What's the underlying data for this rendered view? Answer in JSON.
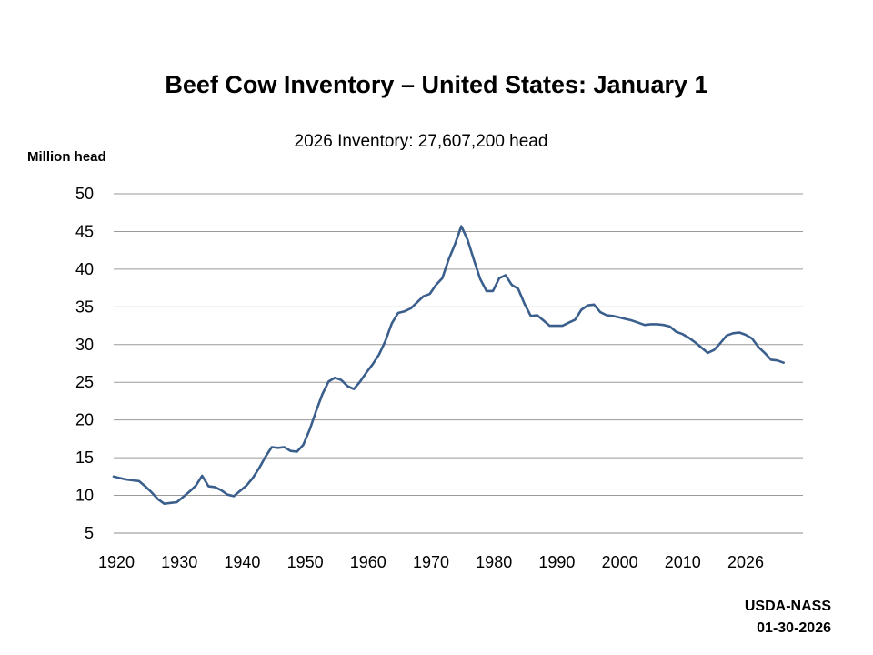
{
  "chart_data": {
    "type": "line",
    "title": "Beef Cow Inventory – United States: January 1",
    "subtitle": "2026 Inventory: 27,607,200 head",
    "xlabel": "",
    "ylabel": "Million head",
    "ylim": [
      5,
      50
    ],
    "yticks": [
      5,
      10,
      15,
      20,
      25,
      30,
      35,
      40,
      45,
      50
    ],
    "xticks": [
      "1920",
      "1930",
      "1940",
      "1950",
      "1960",
      "1970",
      "1980",
      "1990",
      "2000",
      "2010",
      "2026"
    ],
    "grid": true,
    "legend": "none",
    "line_color": "#3b5f8c",
    "series": [
      {
        "x": [
          1920,
          1921,
          1922,
          1923,
          1924,
          1925,
          1926,
          1927,
          1928,
          1929,
          1930,
          1931,
          1932,
          1933,
          1934,
          1935,
          1936,
          1937,
          1938,
          1939,
          1940,
          1941,
          1942,
          1943,
          1944,
          1945,
          1946,
          1947,
          1948,
          1949,
          1950,
          1951,
          1952,
          1953,
          1954,
          1955,
          1956,
          1957,
          1958,
          1959,
          1960,
          1961,
          1962,
          1963,
          1964,
          1965,
          1966,
          1967,
          1968,
          1969,
          1970,
          1971,
          1972,
          1973,
          1974,
          1975,
          1976,
          1977,
          1978,
          1979,
          1980,
          1981,
          1982,
          1983,
          1984,
          1985,
          1986,
          1987,
          1988,
          1989,
          1990,
          1991,
          1992,
          1993,
          1994,
          1995,
          1996,
          1997,
          1998,
          1999,
          2000,
          2001,
          2002,
          2003,
          2004,
          2005,
          2006,
          2007,
          2008,
          2009,
          2010,
          2011,
          2012,
          2013,
          2014,
          2015,
          2016,
          2017,
          2018,
          2019,
          2020,
          2021,
          2022,
          2023,
          2024,
          2025,
          2026
        ],
        "values": [
          12.5,
          12.3,
          12.1,
          12.0,
          11.9,
          11.2,
          10.4,
          9.5,
          8.9,
          9.0,
          9.1,
          9.8,
          10.5,
          11.3,
          12.6,
          11.2,
          11.1,
          10.7,
          10.1,
          9.9,
          10.6,
          11.3,
          12.3,
          13.6,
          15.1,
          16.4,
          16.3,
          16.4,
          15.9,
          15.8,
          16.7,
          18.7,
          21.1,
          23.4,
          25.1,
          25.6,
          25.3,
          24.5,
          24.1,
          25.1,
          26.3,
          27.4,
          28.7,
          30.5,
          32.8,
          34.2,
          34.4,
          34.8,
          35.6,
          36.4,
          36.7,
          37.9,
          38.8,
          41.3,
          43.3,
          45.7,
          43.9,
          41.2,
          38.7,
          37.1,
          37.1,
          38.8,
          39.2,
          37.9,
          37.4,
          35.4,
          33.8,
          33.9,
          33.2,
          32.5,
          32.5,
          32.5,
          32.9,
          33.3,
          34.6,
          35.2,
          35.3,
          34.3,
          33.9,
          33.8,
          33.6,
          33.4,
          33.2,
          32.9,
          32.6,
          32.7,
          32.7,
          32.6,
          32.4,
          31.7,
          31.4,
          30.9,
          30.3,
          29.6,
          28.9,
          29.3,
          30.2,
          31.2,
          31.5,
          31.6,
          31.3,
          30.8,
          29.7,
          28.9,
          28.0,
          27.9,
          27.6
        ]
      }
    ]
  },
  "source": {
    "line1": "USDA-NASS",
    "line2": "01-30-2026"
  }
}
